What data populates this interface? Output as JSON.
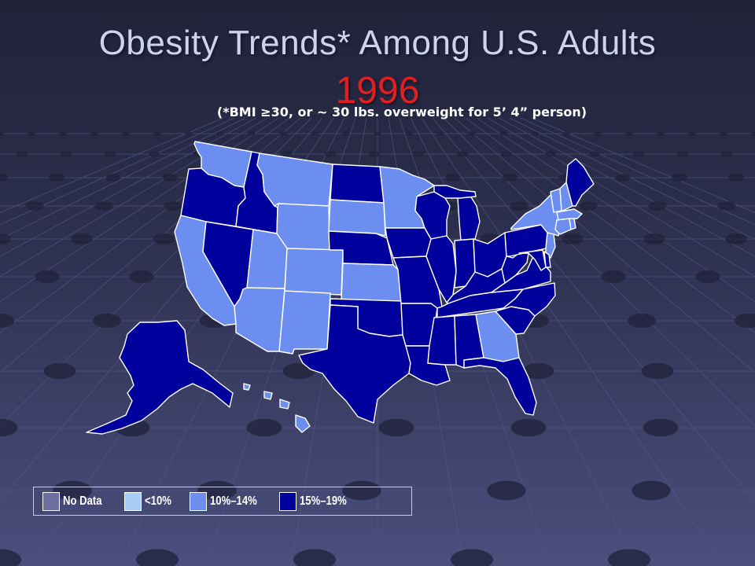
{
  "title": {
    "line1": "Obesity Trends* Among U.S. Adults",
    "year": "1996",
    "subtitle": "(*BMI ≥30, or ~ 30 lbs. overweight for 5’ 4” person)"
  },
  "colors": {
    "no_data": "#6e6ea0",
    "lt10": "#a8ccf8",
    "10_14": "#6c8ef0",
    "15_19": "#00009c",
    "title_year": "#e02020"
  },
  "legend": [
    {
      "label": "No Data",
      "color": "#6e6ea0"
    },
    {
      "label": "<10%",
      "color": "#a8ccf8"
    },
    {
      "label": "10%–14%",
      "color": "#6c8ef0"
    },
    {
      "label": "15%–19%",
      "color": "#00009c"
    }
  ],
  "map_data": {
    "year": "1996",
    "states": {
      "WA": "10%–14%",
      "OR": "15%–19%",
      "CA": "10%–14%",
      "NV": "15%–19%",
      "ID": "15%–19%",
      "MT": "10%–14%",
      "WY": "10%–14%",
      "UT": "10%–14%",
      "AZ": "10%–14%",
      "CO": "10%–14%",
      "NM": "10%–14%",
      "ND": "15%–19%",
      "SD": "10%–14%",
      "NE": "15%–19%",
      "KS": "10%–14%",
      "OK": "15%–19%",
      "TX": "15%–19%",
      "MN": "10%–14%",
      "IA": "15%–19%",
      "MO": "15%–19%",
      "AR": "15%–19%",
      "LA": "15%–19%",
      "WI": "15%–19%",
      "IL": "15%–19%",
      "MI": "15%–19%",
      "IN": "15%–19%",
      "OH": "15%–19%",
      "KY": "15%–19%",
      "TN": "15%–19%",
      "MS": "15%–19%",
      "AL": "15%–19%",
      "GA": "10%–14%",
      "FL": "15%–19%",
      "SC": "15%–19%",
      "NC": "15%–19%",
      "VA": "15%–19%",
      "WV": "15%–19%",
      "PA": "15%–19%",
      "NY": "10%–14%",
      "VT": "10%–14%",
      "NH": "10%–14%",
      "ME": "15%–19%",
      "MA": "10%–14%",
      "CT": "10%–14%",
      "RI": "10%–14%",
      "NJ": "10%–14%",
      "DE": "15%–19%",
      "MD": "15%–19%",
      "AK": "15%–19%",
      "HI": "10%–14%"
    }
  }
}
